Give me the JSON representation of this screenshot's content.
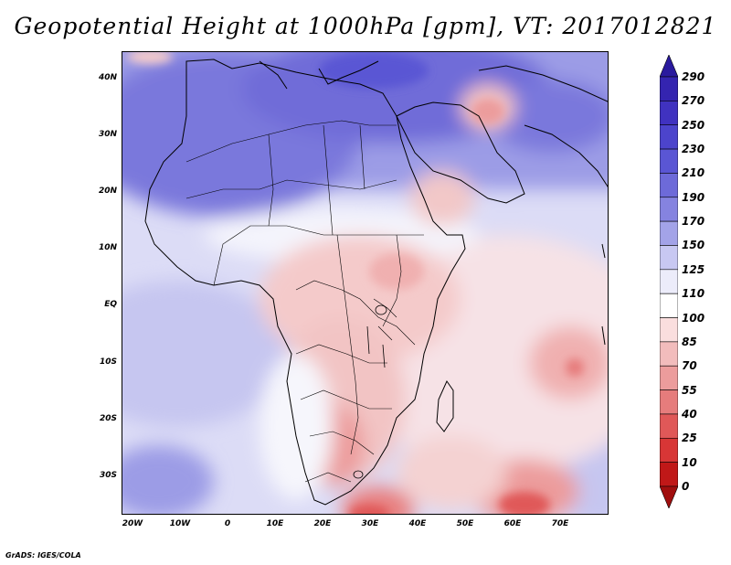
{
  "title": "Geopotential Height at 1000hPa [gpm], VT: 2017012821",
  "credit": "GrADS: IGES/COLA",
  "map": {
    "variable": "Geopotential Height",
    "level": "1000hPa",
    "units": "gpm",
    "valid_time": "2017012821",
    "lat_labels": [
      "40N",
      "30N",
      "20N",
      "10N",
      "EQ",
      "10S",
      "20S",
      "30S"
    ],
    "lon_labels": [
      "20W",
      "10W",
      "0",
      "10E",
      "20E",
      "30E",
      "40E",
      "50E",
      "60E",
      "70E"
    ]
  },
  "colorbar": {
    "labels": [
      "290",
      "270",
      "250",
      "230",
      "210",
      "190",
      "170",
      "150",
      "125",
      "110",
      "100",
      "85",
      "70",
      "55",
      "40",
      "25",
      "10",
      "0"
    ],
    "colors": [
      "#2a1a9e",
      "#3424b0",
      "#4032c0",
      "#4c44cc",
      "#5a56d4",
      "#6d6ad9",
      "#8583e0",
      "#a3a3e8",
      "#c8c8f2",
      "#ececfa",
      "#ffffff",
      "#fadede",
      "#f2bcbc",
      "#ec9c9c",
      "#e67c7c",
      "#e05858",
      "#d83636",
      "#c01818",
      "#a00e0e"
    ]
  }
}
